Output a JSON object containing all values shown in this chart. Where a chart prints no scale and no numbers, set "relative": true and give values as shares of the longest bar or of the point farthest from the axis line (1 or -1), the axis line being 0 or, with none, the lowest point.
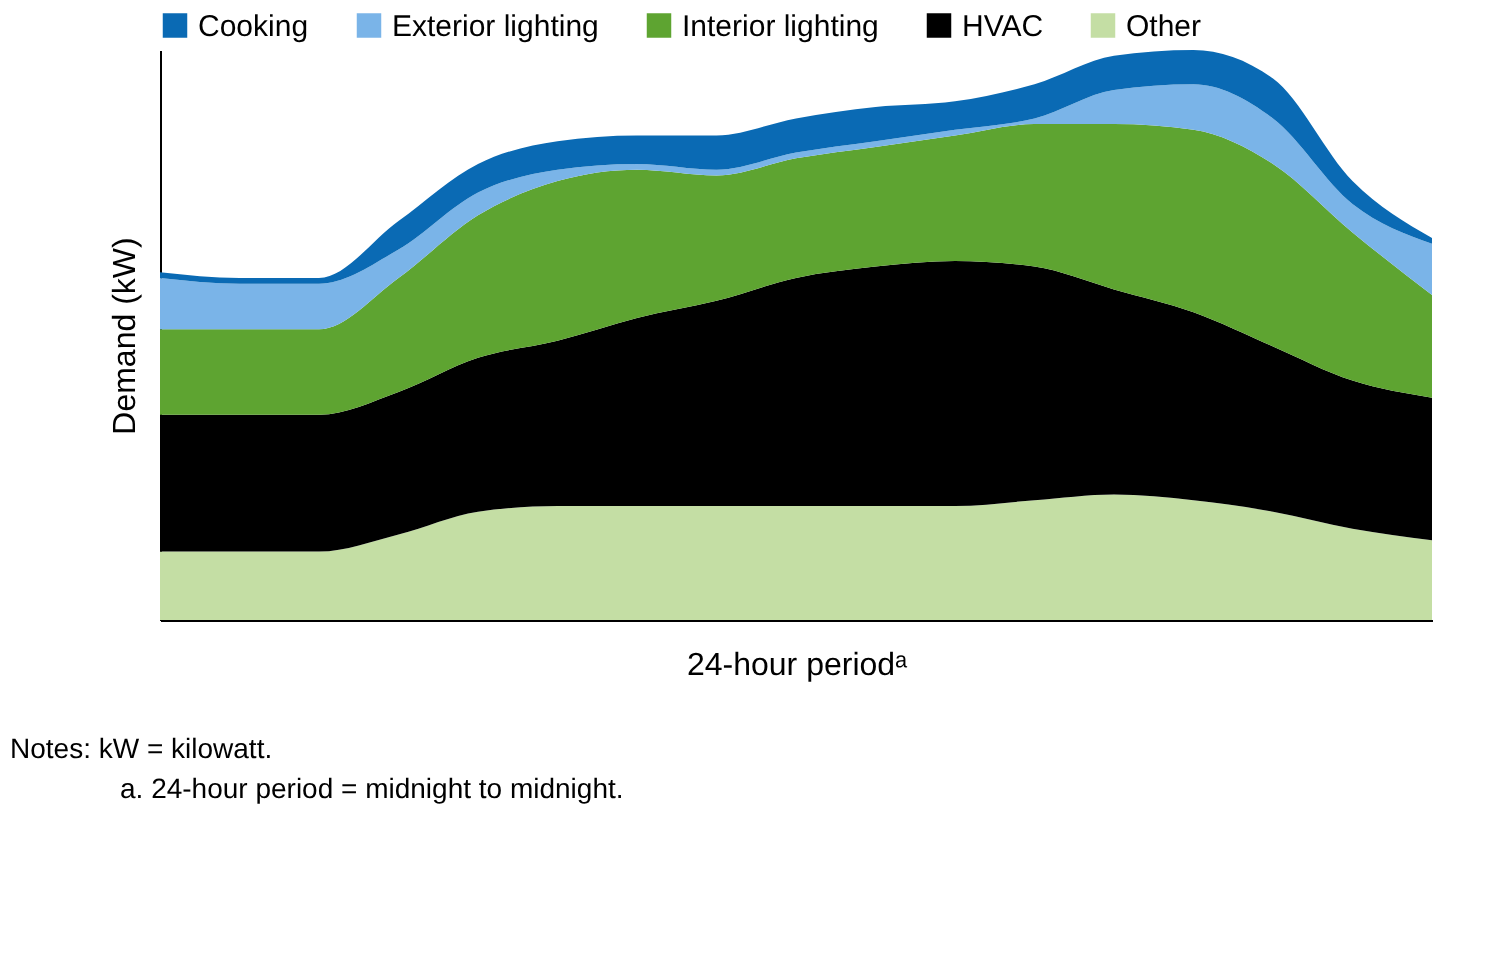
{
  "chart_data": {
    "type": "area",
    "stacked": true,
    "relative": true,
    "xlabel": "24-hour periodᵃ",
    "ylabel": "Demand (kW)",
    "categories": [
      null,
      null,
      null,
      null,
      null,
      null,
      null,
      null,
      null,
      null,
      null,
      null,
      null,
      null,
      null,
      null,
      null
    ],
    "series": [
      {
        "name": "Other",
        "color": "#c4dea4",
        "values": [
          0.12,
          0.12,
          0.12,
          0.15,
          0.19,
          0.2,
          0.2,
          0.2,
          0.2,
          0.2,
          0.2,
          0.21,
          0.22,
          0.21,
          0.19,
          0.16,
          0.14
        ]
      },
      {
        "name": "HVAC",
        "color": "#000000",
        "values": [
          0.24,
          0.24,
          0.24,
          0.25,
          0.27,
          0.29,
          0.33,
          0.36,
          0.4,
          0.42,
          0.43,
          0.41,
          0.36,
          0.33,
          0.29,
          0.26,
          0.25
        ]
      },
      {
        "name": "Interior lighting",
        "color": "#5ea431",
        "values": [
          0.15,
          0.15,
          0.15,
          0.2,
          0.25,
          0.28,
          0.26,
          0.22,
          0.21,
          0.21,
          0.22,
          0.25,
          0.29,
          0.32,
          0.32,
          0.26,
          0.18
        ]
      },
      {
        "name": "Exterior lighting",
        "color": "#7ab4e8",
        "values": [
          0.09,
          0.08,
          0.08,
          0.05,
          0.04,
          0.02,
          0.01,
          0.01,
          0.01,
          0.01,
          0.01,
          0.01,
          0.06,
          0.08,
          0.08,
          0.05,
          0.09
        ]
      },
      {
        "name": "Cooking",
        "color": "#0a6ab4",
        "values": [
          0.01,
          0.01,
          0.01,
          0.05,
          0.05,
          0.05,
          0.05,
          0.06,
          0.06,
          0.06,
          0.05,
          0.06,
          0.06,
          0.06,
          0.07,
          0.04,
          0.01
        ]
      }
    ],
    "legend": "top",
    "grid": false,
    "annotations": [
      "Notes: kW = kilowatt.",
      "a. 24-hour period = midnight to midnight."
    ]
  }
}
